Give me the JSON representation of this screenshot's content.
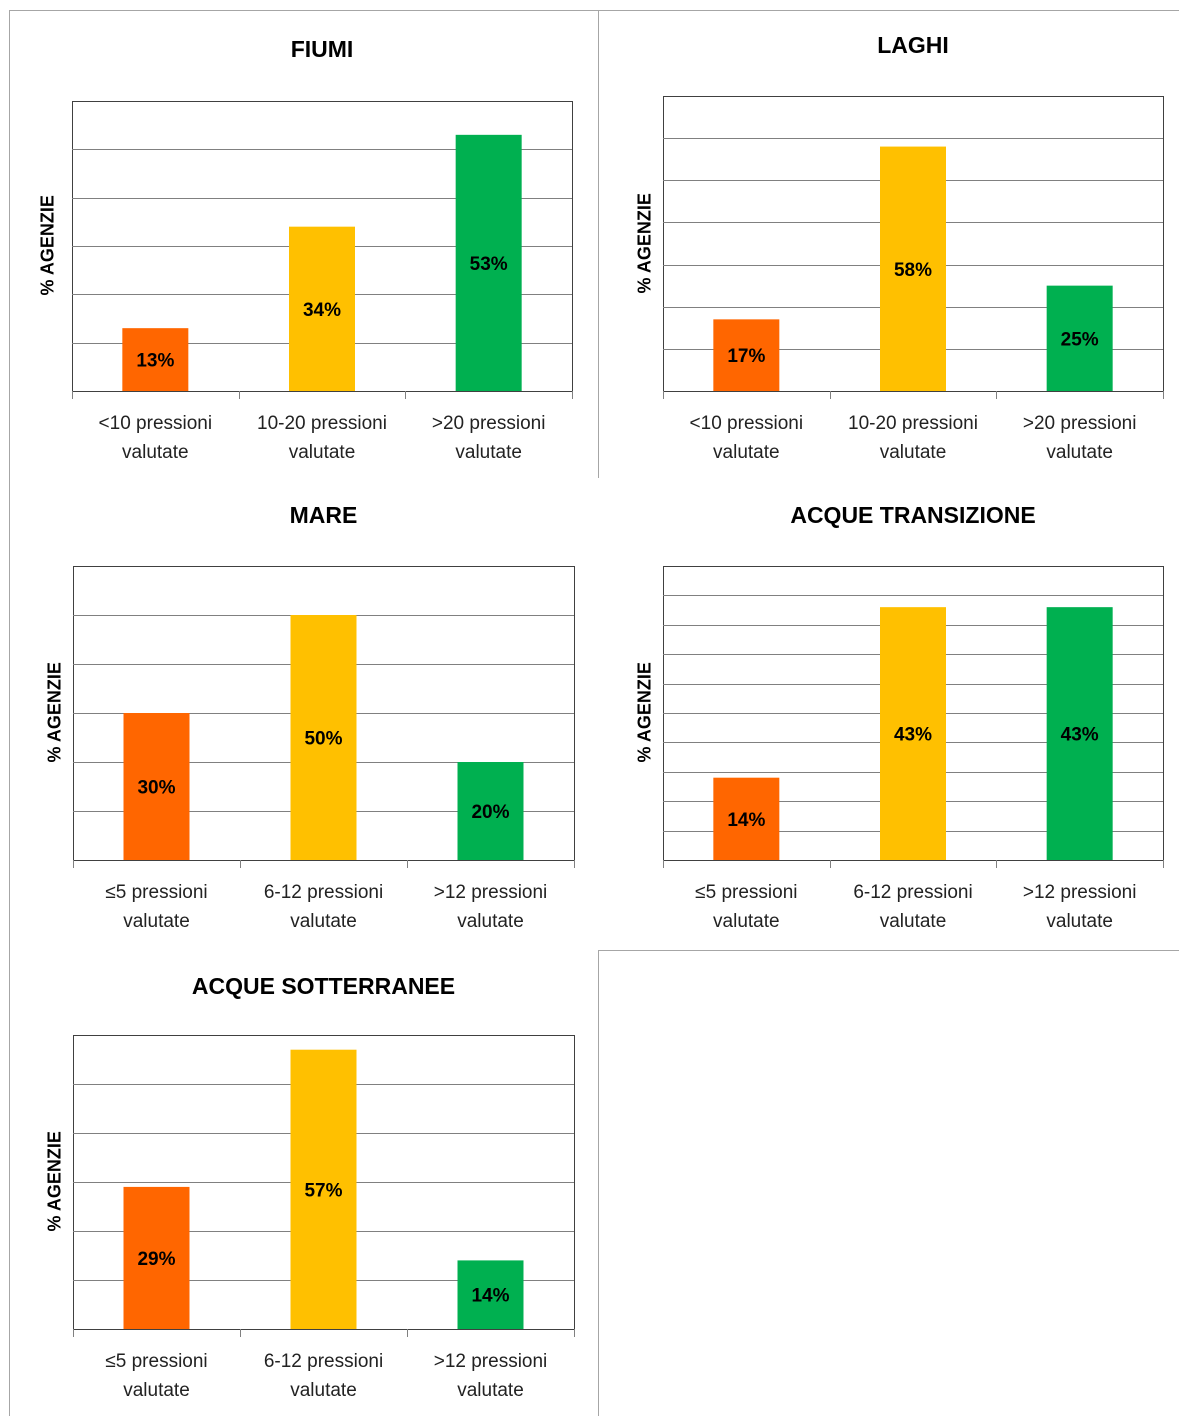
{
  "colors": {
    "orange": "#FF6600",
    "yellow": "#FFC000",
    "green": "#00B050",
    "grid": "#808080",
    "frame": "#a6a6a6"
  },
  "chart_data": [
    {
      "type": "bar",
      "title": "FIUMI",
      "ylabel": "% AGENZIE",
      "categories": [
        [
          "<10 pressioni",
          "valutate"
        ],
        [
          "10-20 pressioni",
          "valutate"
        ],
        [
          ">20 pressioni",
          "valutate"
        ]
      ],
      "values": [
        13,
        34,
        53
      ],
      "labels": [
        "13%",
        "34%",
        "53%"
      ],
      "colors": [
        "#FF6600",
        "#FFC000",
        "#00B050"
      ],
      "ylim": [
        0,
        60
      ],
      "gridlines": 6,
      "grid": true
    },
    {
      "type": "bar",
      "title": "LAGHI",
      "ylabel": "% AGENZIE",
      "categories": [
        [
          "<10 pressioni",
          "valutate"
        ],
        [
          "10-20 pressioni",
          "valutate"
        ],
        [
          ">20 pressioni",
          "valutate"
        ]
      ],
      "values": [
        17,
        58,
        25
      ],
      "labels": [
        "17%",
        "58%",
        "25%"
      ],
      "colors": [
        "#FF6600",
        "#FFC000",
        "#00B050"
      ],
      "ylim": [
        0,
        70
      ],
      "gridlines": 7,
      "grid": true
    },
    {
      "type": "bar",
      "title": "MARE",
      "ylabel": "% AGENZIE",
      "categories": [
        [
          "≤5 pressioni",
          "valutate"
        ],
        [
          "6-12 pressioni",
          "valutate"
        ],
        [
          ">12 pressioni",
          "valutate"
        ]
      ],
      "values": [
        30,
        50,
        20
      ],
      "labels": [
        "30%",
        "50%",
        "20%"
      ],
      "colors": [
        "#FF6600",
        "#FFC000",
        "#00B050"
      ],
      "ylim": [
        0,
        60
      ],
      "gridlines": 6,
      "grid": true
    },
    {
      "type": "bar",
      "title": "ACQUE TRANSIZIONE",
      "ylabel": "% AGENZIE",
      "categories": [
        [
          "≤5 pressioni",
          "valutate"
        ],
        [
          "6-12 pressioni",
          "valutate"
        ],
        [
          ">12 pressioni",
          "valutate"
        ]
      ],
      "values": [
        14,
        43,
        43
      ],
      "labels": [
        "14%",
        "43%",
        "43%"
      ],
      "colors": [
        "#FF6600",
        "#FFC000",
        "#00B050"
      ],
      "ylim": [
        0,
        50
      ],
      "gridlines": 10,
      "grid": true
    },
    {
      "type": "bar",
      "title": "ACQUE SOTTERRANEE",
      "ylabel": "% AGENZIE",
      "categories": [
        [
          "≤5 pressioni",
          "valutate"
        ],
        [
          "6-12 pressioni",
          "valutate"
        ],
        [
          ">12 pressioni",
          "valutate"
        ]
      ],
      "values": [
        29,
        57,
        14
      ],
      "labels": [
        "29%",
        "57%",
        "14%"
      ],
      "colors": [
        "#FF6600",
        "#FFC000",
        "#00B050"
      ],
      "ylim": [
        0,
        60
      ],
      "gridlines": 6,
      "grid": true
    }
  ]
}
